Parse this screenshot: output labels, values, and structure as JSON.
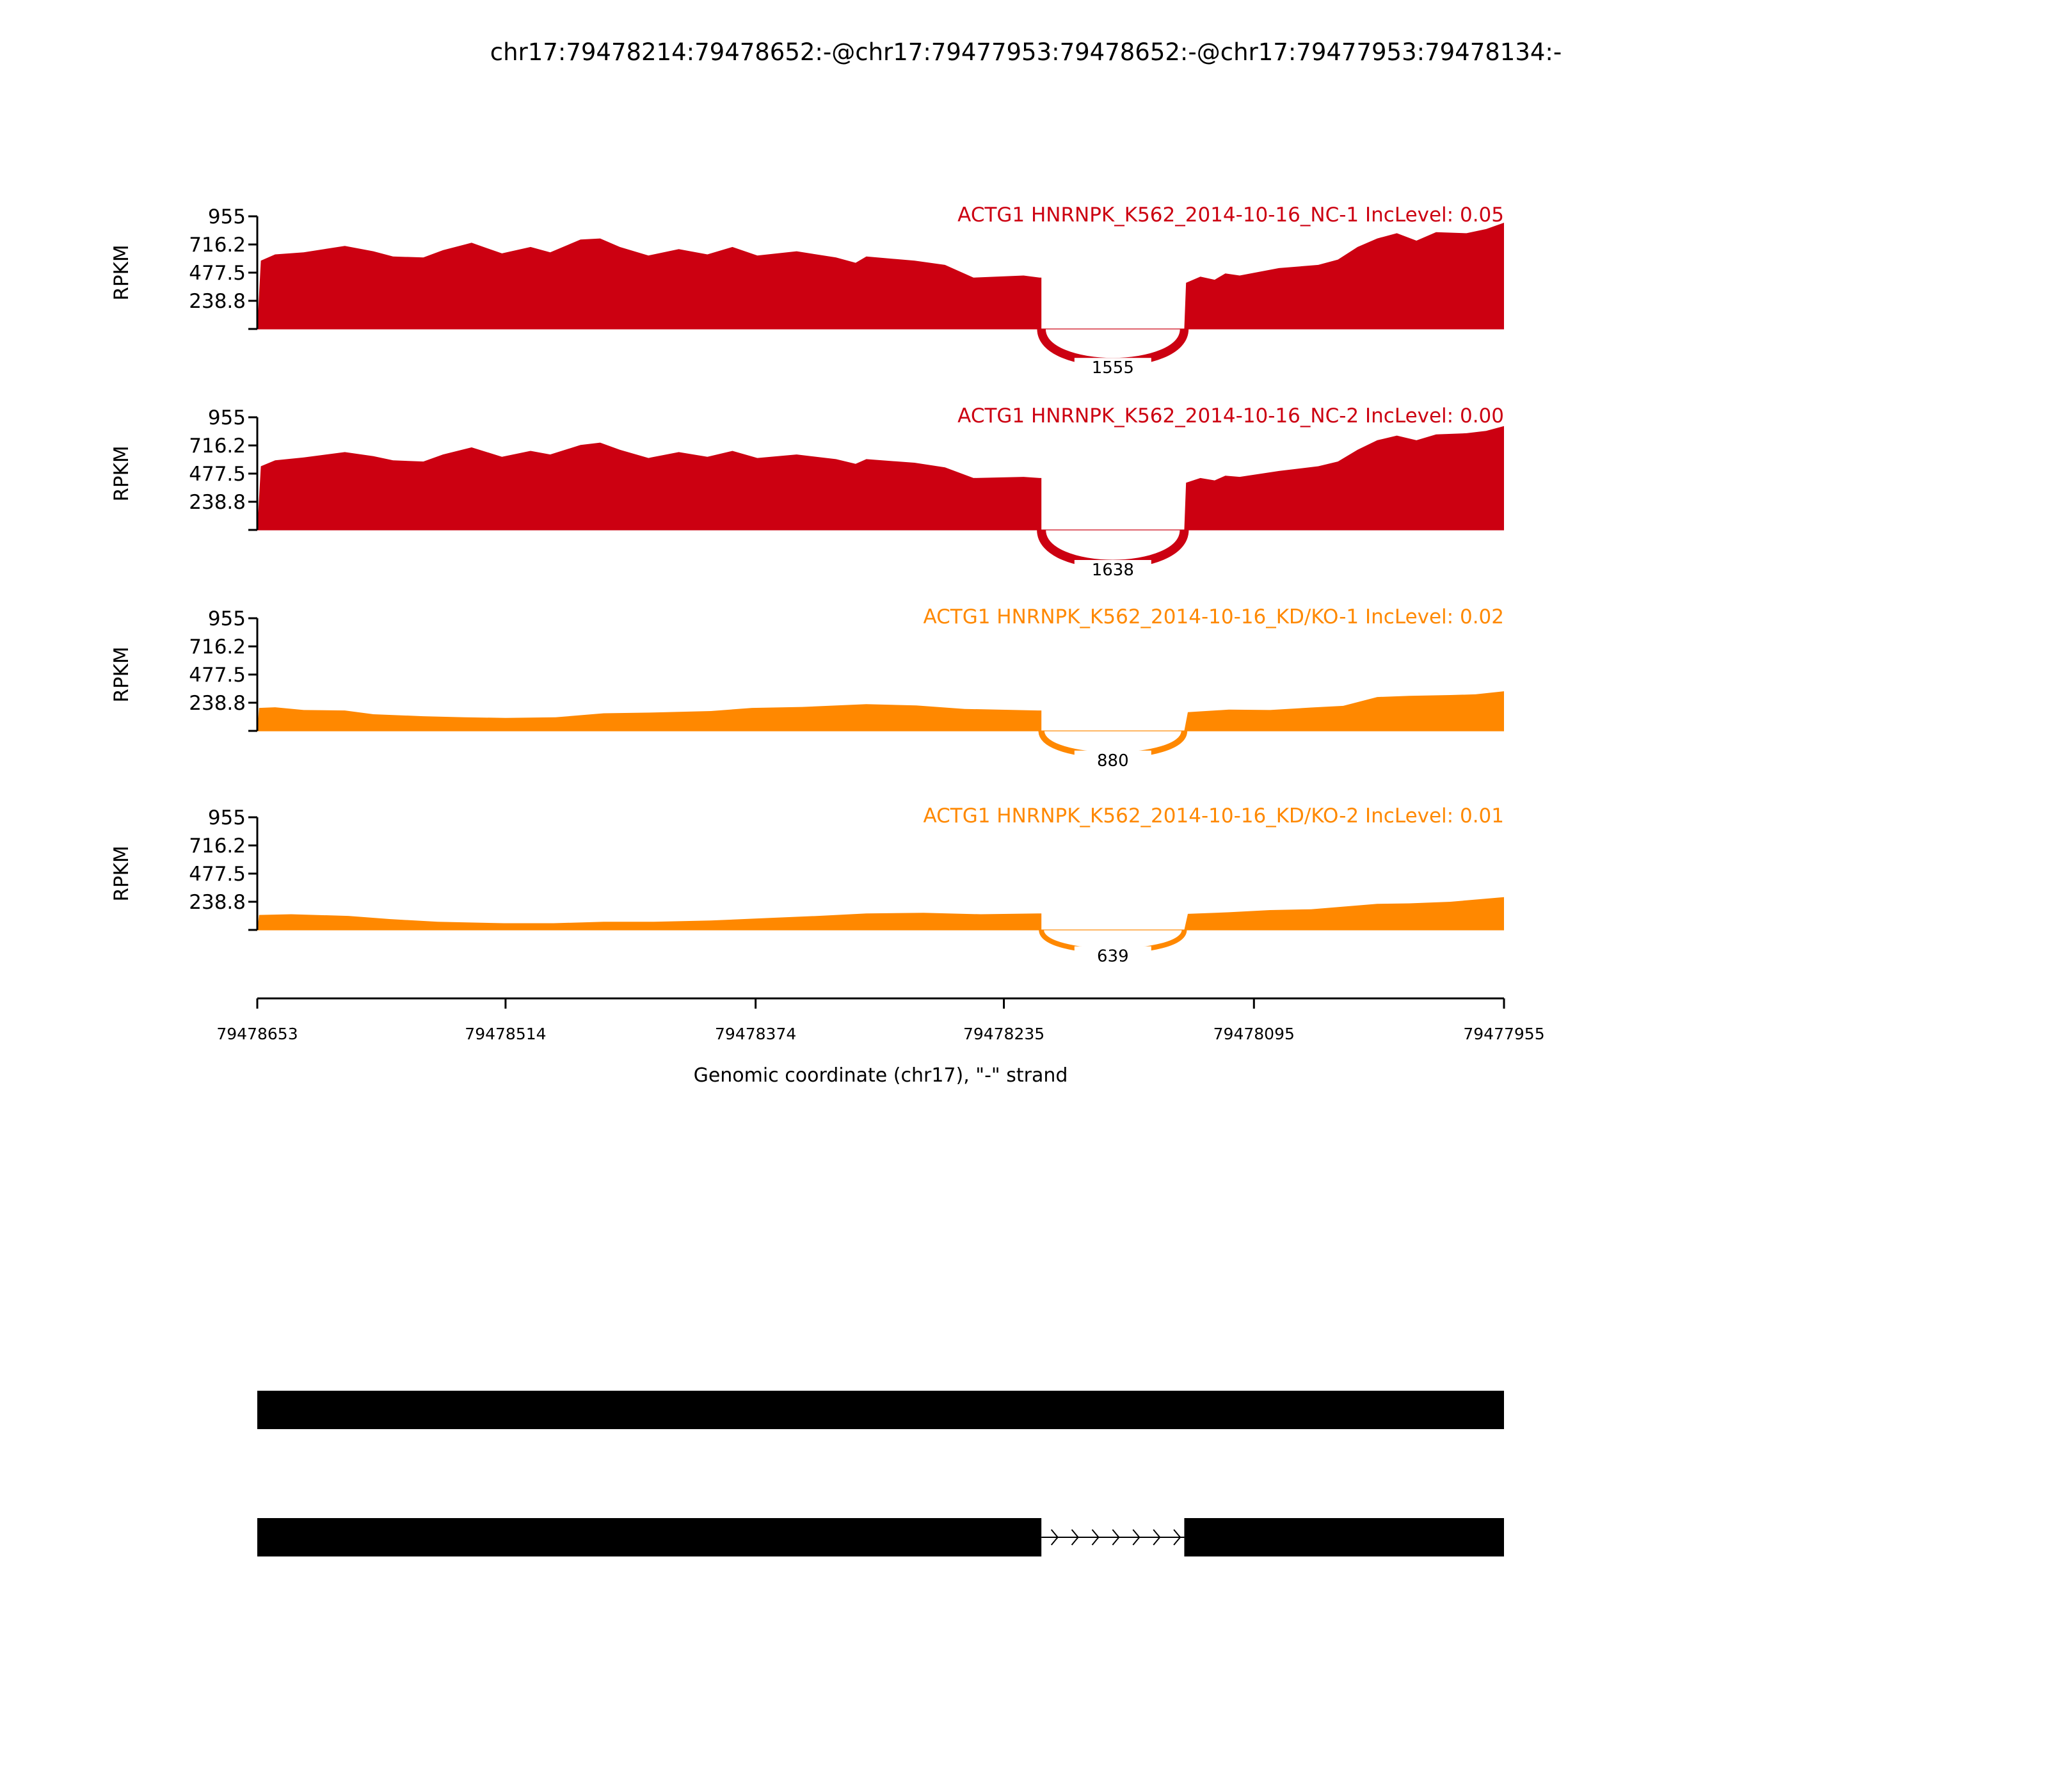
{
  "chart_data": {
    "type": "area",
    "title": "chr17:79478214:79478652:-@chr17:79477953:79478652:-@chr17:79477953:79478134:-",
    "xlabel": "Genomic coordinate (chr17), \"-\" strand",
    "ylabel": "RPKM",
    "xlim": [
      79478653,
      79477955
    ],
    "xticks": [
      "79478653",
      "79478514",
      "79478374",
      "79478235",
      "79478095",
      "79477955"
    ],
    "ylim": [
      0,
      955
    ],
    "yticks": [
      "955",
      "716.2",
      "477.5",
      "238.8"
    ],
    "intron": [
      79478214,
      79478134
    ],
    "colors": {
      "NC": "#cc0011",
      "KD": "#ff8800"
    },
    "panels": [
      {
        "label": "ACTG1 HNRNPK_K562_2014-10-16_NC-1 IncLevel: 0.05",
        "group": "NC",
        "junction_count": "1555",
        "coverage": [
          [
            79478651,
            579
          ],
          [
            79478643,
            632
          ],
          [
            79478627,
            650
          ],
          [
            79478604,
            704
          ],
          [
            79478588,
            659
          ],
          [
            79478577,
            615
          ],
          [
            79478560,
            606
          ],
          [
            79478549,
            668
          ],
          [
            79478533,
            731
          ],
          [
            79478516,
            641
          ],
          [
            79478500,
            695
          ],
          [
            79478489,
            650
          ],
          [
            79478472,
            758
          ],
          [
            79478461,
            767
          ],
          [
            79478450,
            695
          ],
          [
            79478434,
            623
          ],
          [
            79478417,
            677
          ],
          [
            79478401,
            632
          ],
          [
            79478387,
            695
          ],
          [
            79478373,
            623
          ],
          [
            79478351,
            659
          ],
          [
            79478329,
            606
          ],
          [
            79478318,
            561
          ],
          [
            79478312,
            615
          ],
          [
            79478285,
            579
          ],
          [
            79478268,
            543
          ],
          [
            79478252,
            435
          ],
          [
            79478224,
            453
          ],
          [
            79478215,
            435
          ],
          [
            79478133,
            391
          ],
          [
            79478125,
            444
          ],
          [
            79478117,
            417
          ],
          [
            79478111,
            471
          ],
          [
            79478103,
            453
          ],
          [
            79478081,
            516
          ],
          [
            79478059,
            543
          ],
          [
            79478048,
            588
          ],
          [
            79478037,
            695
          ],
          [
            79478026,
            767
          ],
          [
            79478015,
            812
          ],
          [
            79478004,
            749
          ],
          [
            79477993,
            821
          ],
          [
            79477976,
            812
          ],
          [
            79477965,
            847
          ],
          [
            79477955,
            901
          ]
        ]
      },
      {
        "label": "ACTG1 HNRNPK_K562_2014-10-16_NC-2 IncLevel: 0.00",
        "group": "NC",
        "junction_count": "1638",
        "coverage": [
          [
            79478651,
            540
          ],
          [
            79478643,
            590
          ],
          [
            79478627,
            615
          ],
          [
            79478604,
            660
          ],
          [
            79478588,
            625
          ],
          [
            79478577,
            590
          ],
          [
            79478560,
            580
          ],
          [
            79478549,
            640
          ],
          [
            79478533,
            700
          ],
          [
            79478516,
            620
          ],
          [
            79478500,
            670
          ],
          [
            79478489,
            640
          ],
          [
            79478472,
            720
          ],
          [
            79478461,
            740
          ],
          [
            79478450,
            680
          ],
          [
            79478434,
            610
          ],
          [
            79478417,
            660
          ],
          [
            79478401,
            620
          ],
          [
            79478387,
            670
          ],
          [
            79478373,
            610
          ],
          [
            79478351,
            640
          ],
          [
            79478329,
            600
          ],
          [
            79478318,
            560
          ],
          [
            79478312,
            600
          ],
          [
            79478285,
            570
          ],
          [
            79478268,
            530
          ],
          [
            79478252,
            440
          ],
          [
            79478224,
            450
          ],
          [
            79478215,
            440
          ],
          [
            79478133,
            400
          ],
          [
            79478125,
            440
          ],
          [
            79478117,
            420
          ],
          [
            79478111,
            460
          ],
          [
            79478103,
            450
          ],
          [
            79478081,
            500
          ],
          [
            79478059,
            540
          ],
          [
            79478048,
            580
          ],
          [
            79478037,
            680
          ],
          [
            79478026,
            760
          ],
          [
            79478015,
            800
          ],
          [
            79478004,
            760
          ],
          [
            79477993,
            810
          ],
          [
            79477976,
            820
          ],
          [
            79477965,
            840
          ],
          [
            79477955,
            880
          ]
        ]
      },
      {
        "label": "ACTG1 HNRNPK_K562_2014-10-16_KD/KO-1 IncLevel: 0.02",
        "group": "KD",
        "junction_count": "880",
        "coverage": [
          [
            79478652,
            195
          ],
          [
            79478643,
            200
          ],
          [
            79478627,
            177
          ],
          [
            79478604,
            173
          ],
          [
            79478588,
            141
          ],
          [
            79478560,
            124
          ],
          [
            79478537,
            115
          ],
          [
            79478514,
            110
          ],
          [
            79478486,
            115
          ],
          [
            79478459,
            149
          ],
          [
            79478431,
            156
          ],
          [
            79478399,
            168
          ],
          [
            79478376,
            195
          ],
          [
            79478348,
            203
          ],
          [
            79478312,
            226
          ],
          [
            79478284,
            216
          ],
          [
            79478257,
            186
          ],
          [
            79478216,
            173
          ],
          [
            79478132,
            159
          ],
          [
            79478109,
            180
          ],
          [
            79478086,
            177
          ],
          [
            79478063,
            198
          ],
          [
            79478045,
            212
          ],
          [
            79478026,
            287
          ],
          [
            79478008,
            297
          ],
          [
            79477985,
            304
          ],
          [
            79477971,
            310
          ],
          [
            79477955,
            336
          ]
        ]
      },
      {
        "label": "ACTG1 HNRNPK_K562_2014-10-16_KD/KO-2 IncLevel: 0.01",
        "group": "KD",
        "junction_count": "639",
        "coverage": [
          [
            79478652,
            127
          ],
          [
            79478634,
            133
          ],
          [
            79478602,
            119
          ],
          [
            79478579,
            92
          ],
          [
            79478552,
            69
          ],
          [
            79478515,
            57
          ],
          [
            79478487,
            57
          ],
          [
            79478459,
            69
          ],
          [
            79478431,
            69
          ],
          [
            79478399,
            80
          ],
          [
            79478367,
            101
          ],
          [
            79478339,
            119
          ],
          [
            79478312,
            140
          ],
          [
            79478280,
            145
          ],
          [
            79478248,
            133
          ],
          [
            79478216,
            140
          ],
          [
            79478132,
            136
          ],
          [
            79478109,
            150
          ],
          [
            79478086,
            168
          ],
          [
            79478063,
            175
          ],
          [
            79478026,
            221
          ],
          [
            79478008,
            225
          ],
          [
            79477985,
            239
          ],
          [
            79477955,
            278
          ]
        ]
      }
    ],
    "isoforms": [
      {
        "exons": [
          [
            79478653,
            79477955
          ]
        ]
      },
      {
        "exons": [
          [
            79478653,
            79478214
          ],
          [
            79478134,
            79477955
          ]
        ],
        "strand_arrows": 7
      }
    ]
  }
}
